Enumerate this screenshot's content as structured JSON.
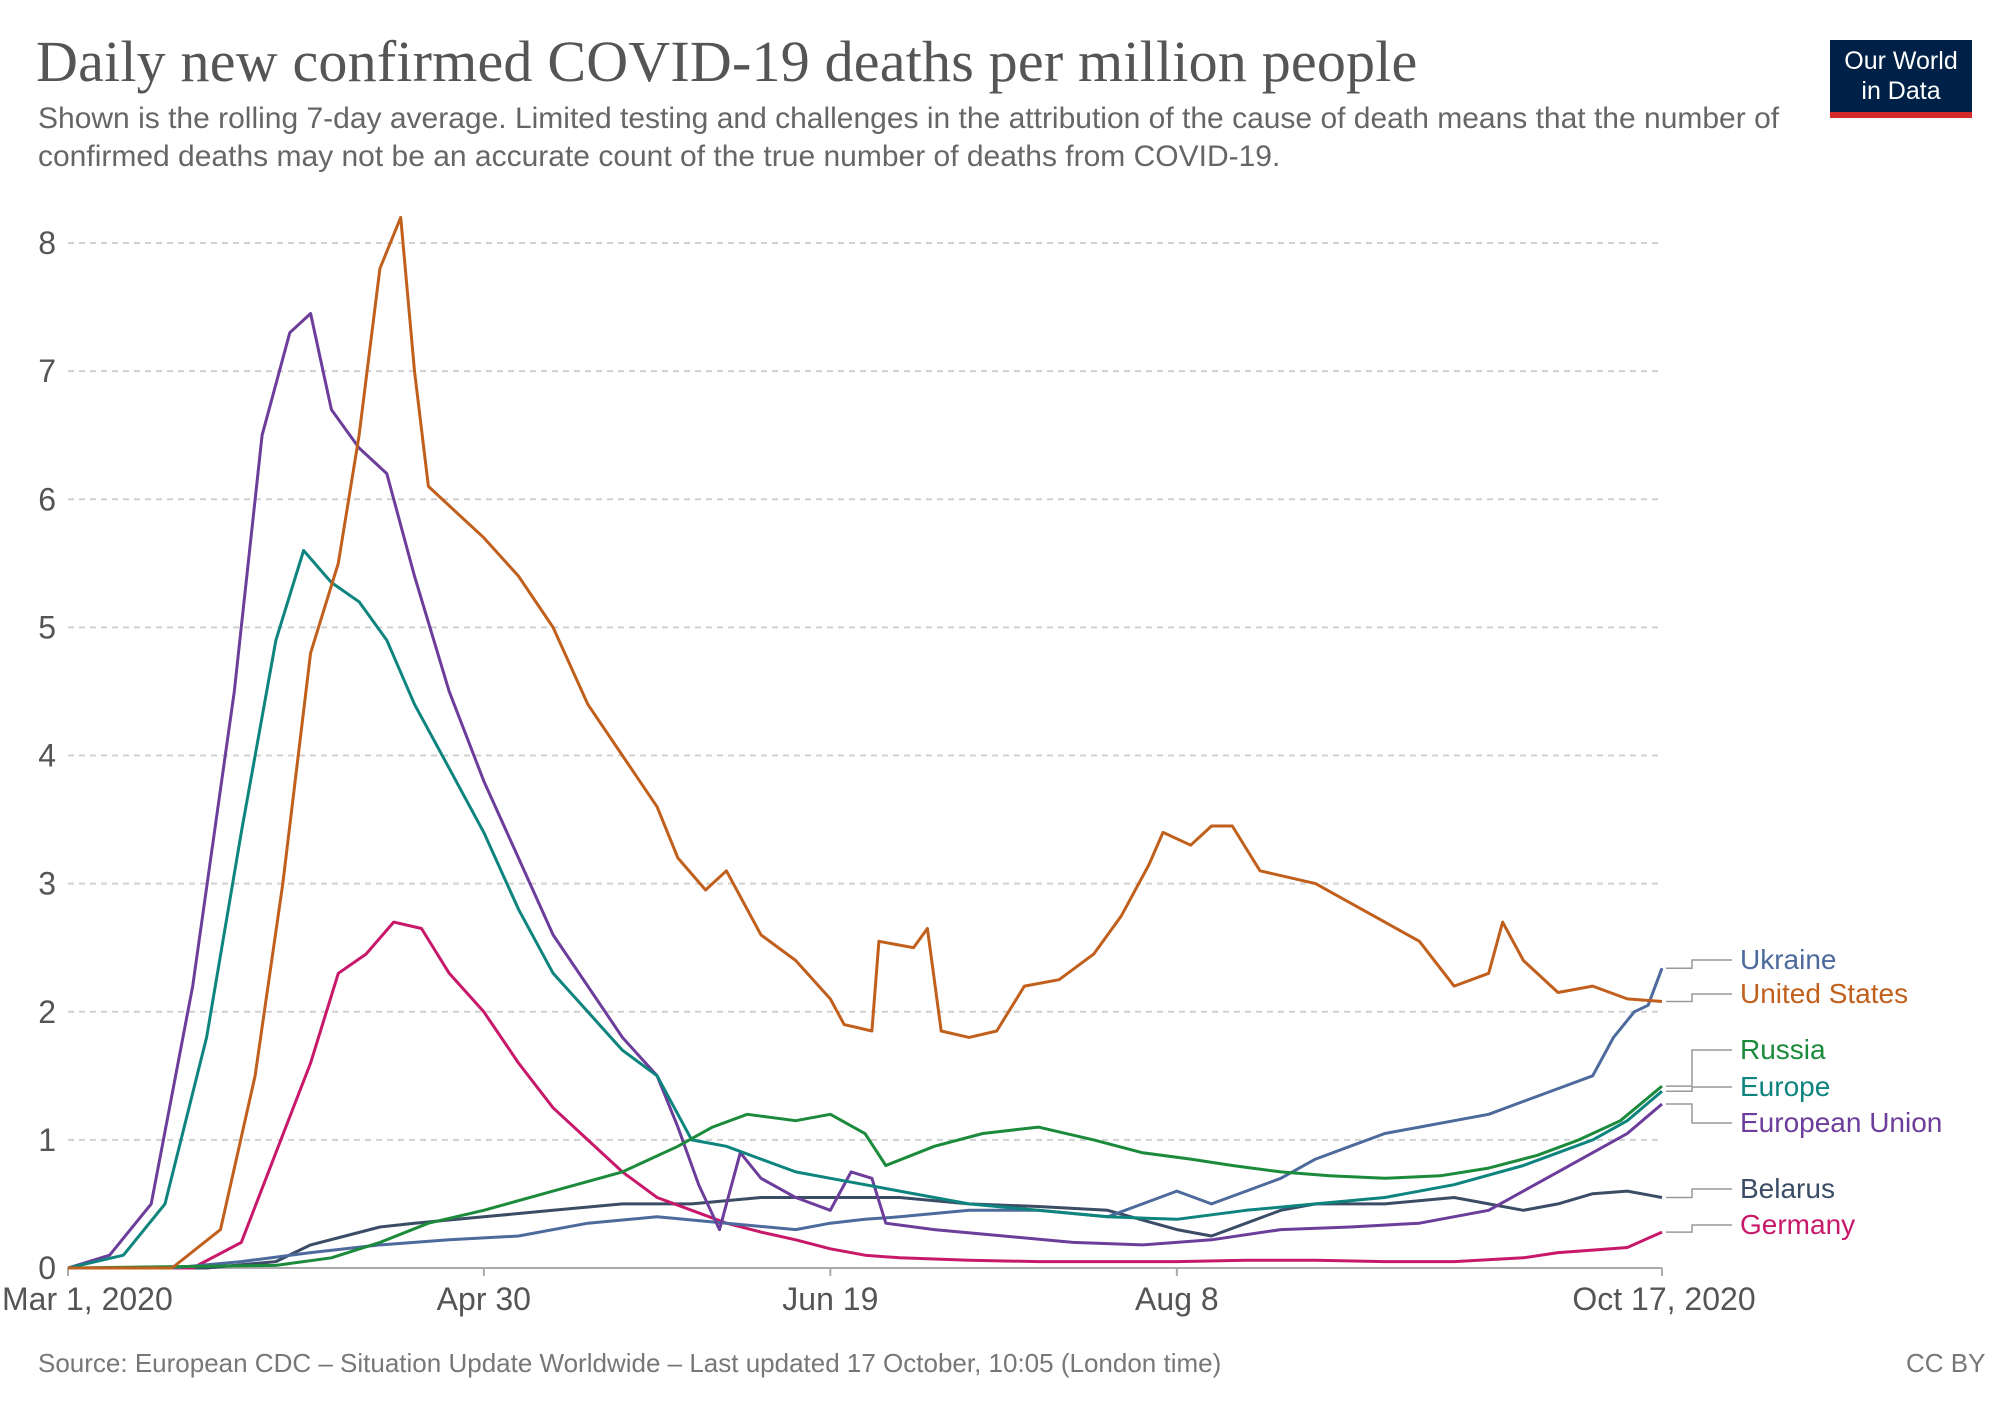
{
  "header": {
    "title": "Daily new confirmed COVID-19 deaths per million people",
    "subtitle": "Shown is the rolling 7-day average. Limited testing and challenges in the attribution of the cause of death means that the number of confirmed deaths may not be an accurate count of the true number of deaths from COVID-19."
  },
  "logo": {
    "line1": "Our World",
    "line2": "in Data"
  },
  "footer": {
    "source": "Source: European CDC – Situation Update Worldwide – Last updated 17 October, 10:05 (London time)",
    "license": "CC BY"
  },
  "chart_data": {
    "type": "line",
    "title": "Daily new confirmed COVID-19 deaths per million people",
    "xlabel": "",
    "ylabel": "",
    "x_range_days": [
      0,
      230
    ],
    "ylim": [
      0,
      8
    ],
    "y_ticks": [
      0,
      1,
      2,
      3,
      4,
      5,
      6,
      7,
      8
    ],
    "x_ticks": [
      {
        "day": 0,
        "label": "Mar 1, 2020"
      },
      {
        "day": 60,
        "label": "Apr 30"
      },
      {
        "day": 110,
        "label": "Jun 19"
      },
      {
        "day": 160,
        "label": "Aug 8"
      },
      {
        "day": 230,
        "label": "Oct 17, 2020"
      }
    ],
    "grid": "horizontal-dashed",
    "legend_position": "right-end-of-lines",
    "series": [
      {
        "name": "Ukraine",
        "color": "#4c6a9c",
        "points": [
          [
            0,
            0
          ],
          [
            15,
            0
          ],
          [
            25,
            0.05
          ],
          [
            35,
            0.12
          ],
          [
            45,
            0.18
          ],
          [
            55,
            0.22
          ],
          [
            65,
            0.25
          ],
          [
            75,
            0.35
          ],
          [
            85,
            0.4
          ],
          [
            95,
            0.35
          ],
          [
            105,
            0.3
          ],
          [
            110,
            0.35
          ],
          [
            115,
            0.38
          ],
          [
            120,
            0.4
          ],
          [
            130,
            0.45
          ],
          [
            140,
            0.45
          ],
          [
            150,
            0.4
          ],
          [
            160,
            0.6
          ],
          [
            165,
            0.5
          ],
          [
            170,
            0.6
          ],
          [
            175,
            0.7
          ],
          [
            180,
            0.85
          ],
          [
            185,
            0.95
          ],
          [
            190,
            1.05
          ],
          [
            195,
            1.1
          ],
          [
            200,
            1.15
          ],
          [
            205,
            1.2
          ],
          [
            210,
            1.3
          ],
          [
            215,
            1.4
          ],
          [
            220,
            1.5
          ],
          [
            223,
            1.8
          ],
          [
            226,
            2.0
          ],
          [
            228,
            2.05
          ],
          [
            230,
            2.34
          ]
        ]
      },
      {
        "name": "United States",
        "color": "#c15f1c",
        "points": [
          [
            0,
            0
          ],
          [
            15,
            0
          ],
          [
            22,
            0.3
          ],
          [
            27,
            1.5
          ],
          [
            31,
            3.0
          ],
          [
            35,
            4.8
          ],
          [
            39,
            5.5
          ],
          [
            42,
            6.5
          ],
          [
            45,
            7.8
          ],
          [
            48,
            8.2
          ],
          [
            50,
            7.0
          ],
          [
            52,
            6.1
          ],
          [
            56,
            5.9
          ],
          [
            60,
            5.7
          ],
          [
            65,
            5.4
          ],
          [
            70,
            5.0
          ],
          [
            75,
            4.4
          ],
          [
            80,
            4.0
          ],
          [
            85,
            3.6
          ],
          [
            88,
            3.2
          ],
          [
            92,
            2.95
          ],
          [
            95,
            3.1
          ],
          [
            100,
            2.6
          ],
          [
            105,
            2.4
          ],
          [
            110,
            2.1
          ],
          [
            112,
            1.9
          ],
          [
            116,
            1.85
          ],
          [
            117,
            2.55
          ],
          [
            122,
            2.5
          ],
          [
            124,
            2.65
          ],
          [
            126,
            1.85
          ],
          [
            130,
            1.8
          ],
          [
            134,
            1.85
          ],
          [
            138,
            2.2
          ],
          [
            143,
            2.25
          ],
          [
            148,
            2.45
          ],
          [
            152,
            2.75
          ],
          [
            156,
            3.15
          ],
          [
            158,
            3.4
          ],
          [
            162,
            3.3
          ],
          [
            165,
            3.45
          ],
          [
            168,
            3.45
          ],
          [
            172,
            3.1
          ],
          [
            176,
            3.05
          ],
          [
            180,
            3.0
          ],
          [
            185,
            2.85
          ],
          [
            190,
            2.7
          ],
          [
            195,
            2.55
          ],
          [
            200,
            2.2
          ],
          [
            205,
            2.3
          ],
          [
            207,
            2.7
          ],
          [
            210,
            2.4
          ],
          [
            215,
            2.15
          ],
          [
            220,
            2.2
          ],
          [
            225,
            2.1
          ],
          [
            230,
            2.08
          ]
        ]
      },
      {
        "name": "Russia",
        "color": "#1b8a3b",
        "points": [
          [
            0,
            0
          ],
          [
            30,
            0.02
          ],
          [
            38,
            0.08
          ],
          [
            45,
            0.2
          ],
          [
            52,
            0.35
          ],
          [
            60,
            0.45
          ],
          [
            70,
            0.6
          ],
          [
            80,
            0.75
          ],
          [
            88,
            0.95
          ],
          [
            93,
            1.1
          ],
          [
            98,
            1.2
          ],
          [
            105,
            1.15
          ],
          [
            110,
            1.2
          ],
          [
            115,
            1.05
          ],
          [
            118,
            0.8
          ],
          [
            125,
            0.95
          ],
          [
            132,
            1.05
          ],
          [
            140,
            1.1
          ],
          [
            148,
            1.0
          ],
          [
            155,
            0.9
          ],
          [
            162,
            0.85
          ],
          [
            168,
            0.8
          ],
          [
            175,
            0.75
          ],
          [
            182,
            0.72
          ],
          [
            190,
            0.7
          ],
          [
            198,
            0.72
          ],
          [
            205,
            0.78
          ],
          [
            212,
            0.88
          ],
          [
            218,
            1.0
          ],
          [
            224,
            1.15
          ],
          [
            230,
            1.42
          ]
        ]
      },
      {
        "name": "Europe",
        "color": "#0e847f",
        "points": [
          [
            0,
            0
          ],
          [
            8,
            0.1
          ],
          [
            14,
            0.5
          ],
          [
            20,
            1.8
          ],
          [
            25,
            3.4
          ],
          [
            30,
            4.9
          ],
          [
            34,
            5.6
          ],
          [
            38,
            5.35
          ],
          [
            42,
            5.2
          ],
          [
            46,
            4.9
          ],
          [
            50,
            4.4
          ],
          [
            55,
            3.9
          ],
          [
            60,
            3.4
          ],
          [
            65,
            2.8
          ],
          [
            70,
            2.3
          ],
          [
            75,
            2.0
          ],
          [
            80,
            1.7
          ],
          [
            85,
            1.5
          ],
          [
            90,
            1.0
          ],
          [
            95,
            0.95
          ],
          [
            100,
            0.85
          ],
          [
            105,
            0.75
          ],
          [
            110,
            0.7
          ],
          [
            115,
            0.65
          ],
          [
            120,
            0.6
          ],
          [
            130,
            0.5
          ],
          [
            140,
            0.45
          ],
          [
            150,
            0.4
          ],
          [
            160,
            0.38
          ],
          [
            170,
            0.45
          ],
          [
            180,
            0.5
          ],
          [
            190,
            0.55
          ],
          [
            200,
            0.65
          ],
          [
            210,
            0.8
          ],
          [
            220,
            1.0
          ],
          [
            225,
            1.15
          ],
          [
            230,
            1.38
          ]
        ]
      },
      {
        "name": "European Union",
        "color": "#6d3d9b",
        "points": [
          [
            0,
            0
          ],
          [
            6,
            0.1
          ],
          [
            12,
            0.5
          ],
          [
            18,
            2.2
          ],
          [
            24,
            4.5
          ],
          [
            28,
            6.5
          ],
          [
            32,
            7.3
          ],
          [
            35,
            7.45
          ],
          [
            38,
            6.7
          ],
          [
            42,
            6.4
          ],
          [
            46,
            6.2
          ],
          [
            50,
            5.4
          ],
          [
            55,
            4.5
          ],
          [
            60,
            3.8
          ],
          [
            65,
            3.2
          ],
          [
            70,
            2.6
          ],
          [
            75,
            2.2
          ],
          [
            80,
            1.8
          ],
          [
            85,
            1.5
          ],
          [
            88,
            1.1
          ],
          [
            91,
            0.65
          ],
          [
            94,
            0.3
          ],
          [
            97,
            0.9
          ],
          [
            100,
            0.7
          ],
          [
            105,
            0.55
          ],
          [
            110,
            0.45
          ],
          [
            113,
            0.75
          ],
          [
            116,
            0.7
          ],
          [
            118,
            0.35
          ],
          [
            125,
            0.3
          ],
          [
            135,
            0.25
          ],
          [
            145,
            0.2
          ],
          [
            155,
            0.18
          ],
          [
            165,
            0.22
          ],
          [
            175,
            0.3
          ],
          [
            185,
            0.32
          ],
          [
            195,
            0.35
          ],
          [
            205,
            0.45
          ],
          [
            210,
            0.6
          ],
          [
            215,
            0.75
          ],
          [
            220,
            0.9
          ],
          [
            225,
            1.05
          ],
          [
            230,
            1.28
          ]
        ]
      },
      {
        "name": "Belarus",
        "color": "#3b4d66",
        "points": [
          [
            0,
            0
          ],
          [
            20,
            0
          ],
          [
            30,
            0.05
          ],
          [
            35,
            0.18
          ],
          [
            40,
            0.25
          ],
          [
            45,
            0.32
          ],
          [
            50,
            0.35
          ],
          [
            60,
            0.4
          ],
          [
            70,
            0.45
          ],
          [
            80,
            0.5
          ],
          [
            90,
            0.5
          ],
          [
            100,
            0.55
          ],
          [
            110,
            0.55
          ],
          [
            120,
            0.55
          ],
          [
            130,
            0.5
          ],
          [
            140,
            0.48
          ],
          [
            150,
            0.45
          ],
          [
            160,
            0.3
          ],
          [
            165,
            0.25
          ],
          [
            170,
            0.35
          ],
          [
            175,
            0.45
          ],
          [
            180,
            0.5
          ],
          [
            190,
            0.5
          ],
          [
            200,
            0.55
          ],
          [
            205,
            0.5
          ],
          [
            210,
            0.45
          ],
          [
            215,
            0.5
          ],
          [
            220,
            0.58
          ],
          [
            225,
            0.6
          ],
          [
            230,
            0.55
          ]
        ]
      },
      {
        "name": "Germany",
        "color": "#c8186a",
        "points": [
          [
            0,
            0
          ],
          [
            18,
            0
          ],
          [
            25,
            0.2
          ],
          [
            30,
            0.9
          ],
          [
            35,
            1.6
          ],
          [
            39,
            2.3
          ],
          [
            43,
            2.45
          ],
          [
            47,
            2.7
          ],
          [
            51,
            2.65
          ],
          [
            55,
            2.3
          ],
          [
            60,
            2.0
          ],
          [
            65,
            1.6
          ],
          [
            70,
            1.25
          ],
          [
            75,
            1.0
          ],
          [
            80,
            0.75
          ],
          [
            85,
            0.55
          ],
          [
            90,
            0.45
          ],
          [
            95,
            0.35
          ],
          [
            100,
            0.28
          ],
          [
            105,
            0.22
          ],
          [
            110,
            0.15
          ],
          [
            115,
            0.1
          ],
          [
            120,
            0.08
          ],
          [
            130,
            0.06
          ],
          [
            140,
            0.05
          ],
          [
            150,
            0.05
          ],
          [
            160,
            0.05
          ],
          [
            170,
            0.06
          ],
          [
            180,
            0.06
          ],
          [
            190,
            0.05
          ],
          [
            200,
            0.05
          ],
          [
            210,
            0.08
          ],
          [
            215,
            0.12
          ],
          [
            220,
            0.14
          ],
          [
            225,
            0.16
          ],
          [
            230,
            0.28
          ]
        ]
      }
    ]
  }
}
